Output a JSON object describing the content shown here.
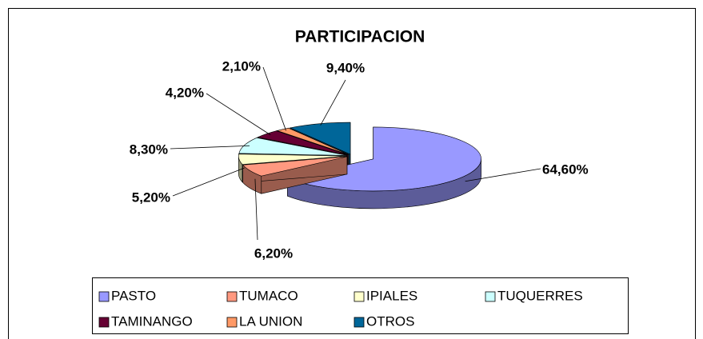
{
  "chart_data": {
    "type": "pie",
    "title": "PARTICIPACION",
    "categories": [
      "PASTO",
      "TUMACO",
      "IPIALES",
      "TUQUERRES",
      "TAMINANGO",
      "LA UNION",
      "OTROS"
    ],
    "values": [
      64.6,
      6.2,
      5.2,
      8.3,
      4.2,
      2.1,
      9.4
    ],
    "value_labels": [
      "64,60%",
      "6,20%",
      "5,20%",
      "8,30%",
      "4,20%",
      "2,10%",
      "9,40%"
    ],
    "colors": [
      "#9999ff",
      "#ff9980",
      "#ffffcc",
      "#ccffff",
      "#660033",
      "#ff9966",
      "#006699"
    ],
    "legend": "bottom"
  }
}
